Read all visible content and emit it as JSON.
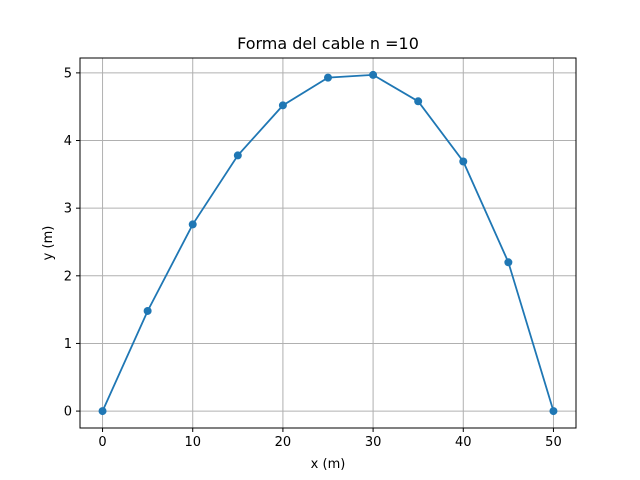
{
  "chart_data": {
    "type": "line",
    "title": "Forma del cable n =10",
    "xlabel": "x (m)",
    "ylabel": "y (m)",
    "xlim": [
      -2.5,
      52.5
    ],
    "ylim": [
      -0.25,
      5.22
    ],
    "xticks": [
      0,
      10,
      20,
      30,
      40,
      50
    ],
    "yticks": [
      0,
      1,
      2,
      3,
      4,
      5
    ],
    "grid": true,
    "series": [
      {
        "x": [
          0,
          5,
          10,
          15,
          20,
          25,
          30,
          35,
          40,
          45,
          50
        ],
        "y": [
          0,
          1.48,
          2.76,
          3.78,
          4.52,
          4.93,
          4.97,
          4.58,
          3.69,
          2.2,
          0
        ],
        "color": "#1f77b4",
        "marker": "circle"
      }
    ]
  }
}
